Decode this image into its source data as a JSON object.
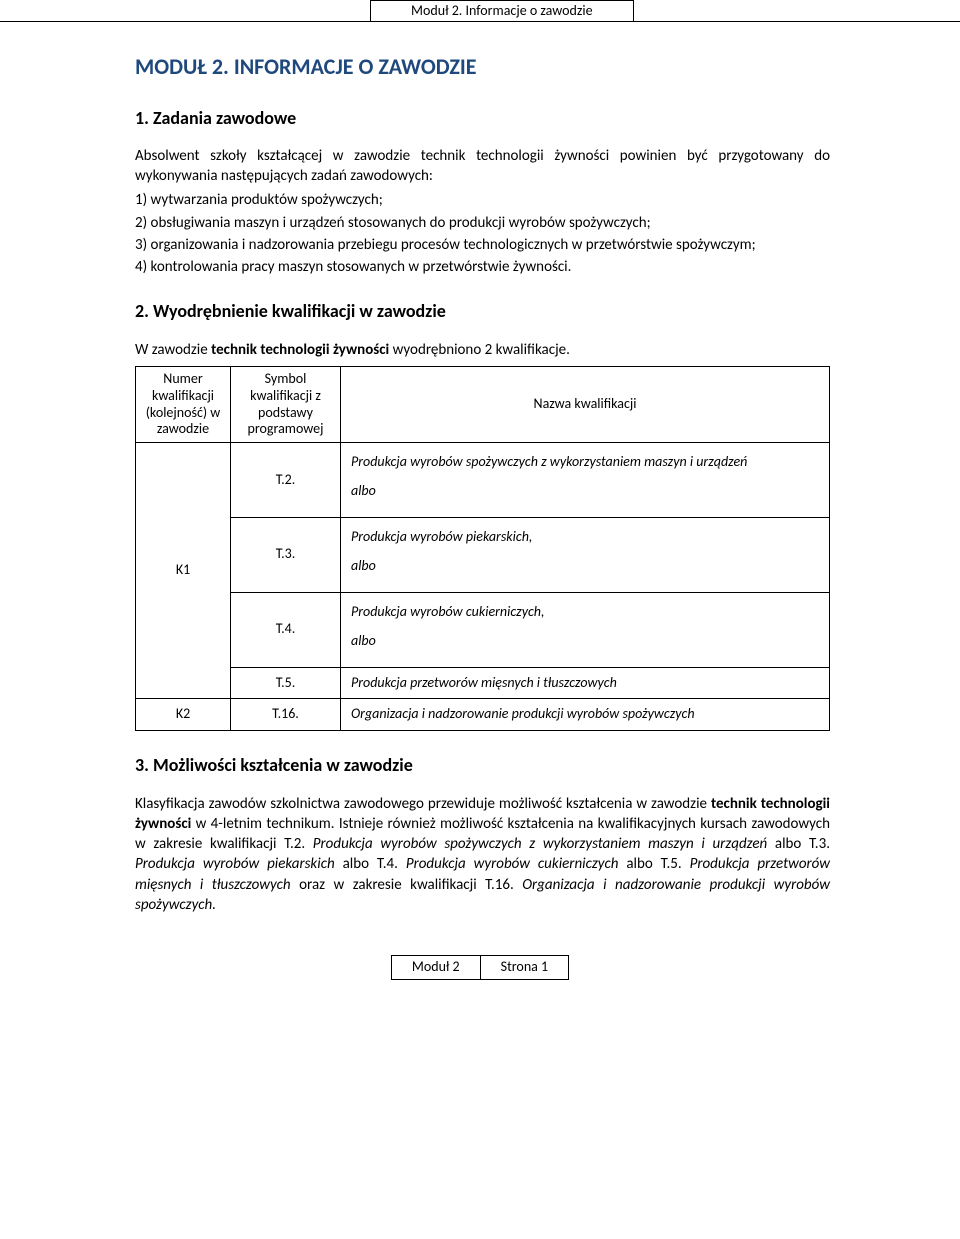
{
  "header": {
    "band_title": "Moduł 2. Informacje o zawodzie"
  },
  "title": "MODUŁ 2. INFORMACJE O ZAWODZIE",
  "section1": {
    "heading": "1. Zadania zawodowe",
    "intro": "Absolwent szkoły kształcącej w zawodzie technik technologii żywności powinien być przygotowany do wykonywania następujących zadań zawodowych:",
    "items": [
      "1) wytwarzania produktów spożywczych;",
      "2) obsługiwania maszyn i urządzeń stosowanych do produkcji wyrobów spożywczych;",
      "3) organizowania i nadzorowania przebiegu procesów technologicznych w przetwórstwie spożywczym;",
      "4) kontrolowania pracy maszyn stosowanych w przetwórstwie żywności."
    ]
  },
  "section2": {
    "heading": " 2. Wyodrębnienie kwalifikacji w zawodzie",
    "intro_prefix": "W zawodzie ",
    "intro_bold": "technik technologii żywności",
    "intro_suffix": " wyodrębniono 2 kwalifikacje.",
    "table": {
      "headers": {
        "col1": "Numer kwalifikacji (kolejność) w zawodzie",
        "col2": "Symbol kwalifikacji z podstawy programowej",
        "col3": "Nazwa kwalifikacji"
      },
      "k1": {
        "num": "K1",
        "rows": [
          {
            "sym": "T.2.",
            "name": "Produkcja wyrobów spożywczych z wykorzystaniem maszyn i urządzeń"
          },
          {
            "sym": "T.3.",
            "name": "Produkcja wyrobów piekarskich,"
          },
          {
            "sym": "T.4.",
            "name": "Produkcja wyrobów cukierniczych,"
          },
          {
            "sym": "T.5.",
            "name": "Produkcja przetworów mięsnych i tłuszczowych"
          }
        ],
        "albo": "albo"
      },
      "k2": {
        "num": "K2",
        "sym": "T.16.",
        "name": "Organizacja i nadzorowanie produkcji wyrobów spożywczych"
      }
    }
  },
  "section3": {
    "heading": "3. Możliwości kształcenia w zawodzie",
    "p1a": "Klasyfikacja zawodów szkolnictwa zawodowego przewiduje możliwość kształcenia w zawodzie ",
    "p1b": "technik technologii żywności",
    "p1c": " w 4-letnim technikum. Istnieje również możliwość kształcenia na kwalifikacyjnych kursach zawodowych w zakresie kwalifikacji T.2. ",
    "p1d": "Produkcja wyrobów spożywczych z wykorzystaniem maszyn i urządzeń",
    "p1e": " albo T.3. ",
    "p1f": "Produkcja wyrobów piekarskich",
    "p1g": " albo T.4. ",
    "p1h": "Produkcja wyrobów cukierniczych ",
    "p1i": "albo T.5. ",
    "p1j": "Produkcja przetworów mięsnych i tłuszczowych",
    "p1k": " oraz w zakresie kwalifikacji T.16. ",
    "p1l": "Organizacja i nadzorowanie produkcji wyrobów spożywczych.",
    "p1m": ""
  },
  "footer": {
    "left": "Moduł 2",
    "right": "Strona 1"
  },
  "colors": {
    "heading": "#1f497d",
    "text": "#000000",
    "background": "#ffffff",
    "border": "#000000"
  }
}
